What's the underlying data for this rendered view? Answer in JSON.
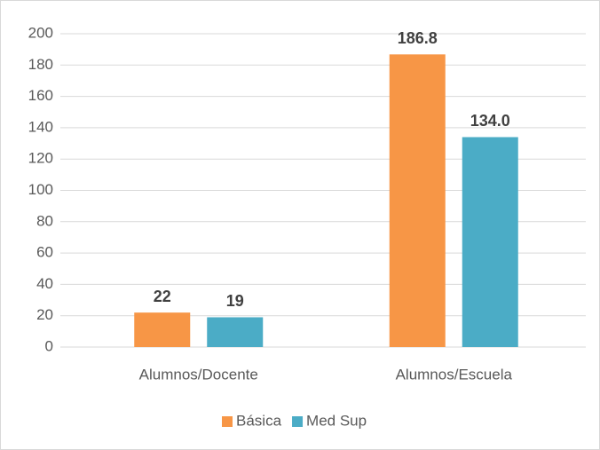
{
  "chart_data": {
    "type": "bar",
    "categories": [
      "Alumnos/Docente",
      "Alumnos/Escuela"
    ],
    "series": [
      {
        "name": "Básica",
        "color": "#f79646",
        "values": [
          22,
          186.8
        ],
        "value_labels": [
          "22",
          "186.8"
        ]
      },
      {
        "name": "Med Sup",
        "color": "#4bacc6",
        "values": [
          19,
          134.0
        ],
        "value_labels": [
          "19",
          "134.0"
        ]
      }
    ],
    "ylim": [
      0,
      200
    ],
    "yticks": [
      0,
      20,
      40,
      60,
      80,
      100,
      120,
      140,
      160,
      180,
      200
    ],
    "grid": true,
    "legend": "bottom"
  }
}
